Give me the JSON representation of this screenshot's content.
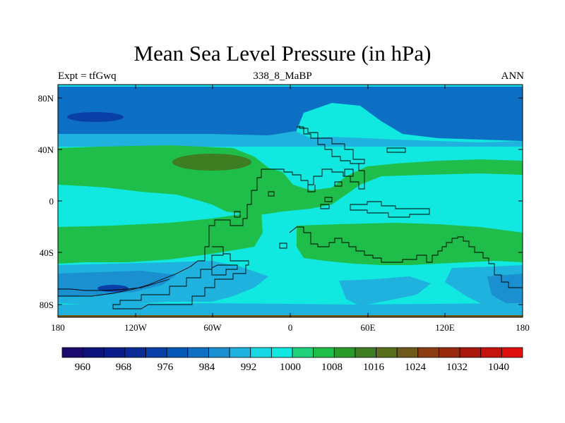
{
  "title": "Mean Sea Level Pressure (in hPa)",
  "subtitle_left": "Expt = tfGwq",
  "subtitle_center": "338_8_MaBP",
  "subtitle_right": "ANN",
  "map": {
    "lon_range": [
      -180,
      180
    ],
    "lat_range": [
      -90,
      90
    ],
    "lat_ticks": [
      {
        "value": 80,
        "label": "80N"
      },
      {
        "value": 40,
        "label": "40N"
      },
      {
        "value": 0,
        "label": "0"
      },
      {
        "value": -40,
        "label": "40S"
      },
      {
        "value": -80,
        "label": "80S"
      }
    ],
    "lon_ticks": [
      {
        "value": -180,
        "label": "180"
      },
      {
        "value": -120,
        "label": "120W"
      },
      {
        "value": -60,
        "label": "60W"
      },
      {
        "value": 0,
        "label": "0"
      },
      {
        "value": 60,
        "label": "60E"
      },
      {
        "value": 120,
        "label": "120E"
      },
      {
        "value": 180,
        "label": "180"
      }
    ]
  },
  "colorbar": {
    "colors": [
      "#1a0a6e",
      "#0d127a",
      "#0a1b8a",
      "#0b2a96",
      "#0a3fa8",
      "#0558b8",
      "#1270c4",
      "#1a90d0",
      "#1fb2de",
      "#17d8e4",
      "#11e8e0",
      "#1fd17a",
      "#1fbe4a",
      "#2a9a2a",
      "#3f7d22",
      "#5a6e1e",
      "#6e5a1a",
      "#8a3c12",
      "#9a2a0e",
      "#a8180e",
      "#c4120e",
      "#e0100e"
    ],
    "labels": [
      "960",
      "968",
      "976",
      "984",
      "992",
      "1000",
      "1008",
      "1016",
      "1024",
      "1032",
      "1040"
    ]
  }
}
